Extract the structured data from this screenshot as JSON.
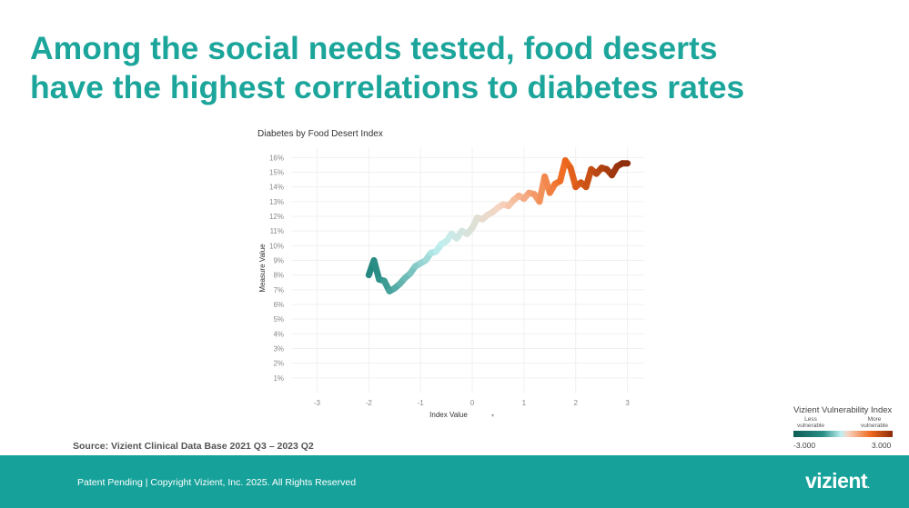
{
  "title": {
    "line1": "Among the social needs tested, food deserts",
    "line2": "have the highest correlations to diabetes rates"
  },
  "source": "Source: Vizient Clinical Data Base 2021 Q3 – 2023 Q2",
  "legend": {
    "title": "Vizient Vulnerability Index",
    "less": "Less vulnerable",
    "more": "More vulnerable",
    "min": "-3.000",
    "max": "3.000"
  },
  "footer": {
    "copyright": "Patent Pending  |  Copyright Vizient, Inc. 2025. All Rights Reserved",
    "logo": "vizient"
  },
  "chart_data": {
    "type": "line",
    "title": "Diabetes by Food Desert Index",
    "xlabel": "Index Value",
    "ylabel": "Measure Value",
    "xlim": [
      -3.5,
      3.5
    ],
    "ylim": [
      0,
      16.7
    ],
    "x_ticks": [
      -3,
      -2,
      -1,
      0,
      1,
      2,
      3
    ],
    "x_tick_labels": [
      "-3",
      "-2",
      "-1",
      "0",
      "1",
      "2",
      "3"
    ],
    "y_ticks": [
      1,
      2,
      3,
      4,
      5,
      6,
      7,
      8,
      9,
      10,
      11,
      12,
      13,
      14,
      15,
      16
    ],
    "y_tick_labels": [
      "1%",
      "2%",
      "3%",
      "4%",
      "5%",
      "6%",
      "7%",
      "8%",
      "9%",
      "10%",
      "11%",
      "12%",
      "13%",
      "14%",
      "15%",
      "16%"
    ],
    "color_scale": {
      "min": -3,
      "max": 3,
      "colors": [
        "#0d5c55",
        "#2a8f87",
        "#bfeff0",
        "#f7d3bf",
        "#f0691e",
        "#8a2b0b"
      ]
    },
    "series": [
      {
        "name": "Diabetes",
        "x": [
          -2.0,
          -1.9,
          -1.8,
          -1.7,
          -1.6,
          -1.5,
          -1.4,
          -1.3,
          -1.2,
          -1.1,
          -1.0,
          -0.9,
          -0.8,
          -0.7,
          -0.6,
          -0.5,
          -0.4,
          -0.3,
          -0.2,
          -0.1,
          0.0,
          0.1,
          0.2,
          0.3,
          0.4,
          0.5,
          0.6,
          0.7,
          0.8,
          0.9,
          1.0,
          1.1,
          1.2,
          1.3,
          1.4,
          1.5,
          1.6,
          1.7,
          1.8,
          1.9,
          2.0,
          2.1,
          2.2,
          2.3,
          2.4,
          2.5,
          2.6,
          2.7,
          2.8,
          2.9,
          3.0
        ],
        "values": [
          8.0,
          9.0,
          7.7,
          7.6,
          6.9,
          7.1,
          7.4,
          7.8,
          8.1,
          8.6,
          8.8,
          9.0,
          9.5,
          9.6,
          10.1,
          10.3,
          10.8,
          10.5,
          11.0,
          10.8,
          11.2,
          11.9,
          11.8,
          12.1,
          12.3,
          12.6,
          12.8,
          12.7,
          13.1,
          13.4,
          13.2,
          13.6,
          13.5,
          13.0,
          14.7,
          13.6,
          14.2,
          14.4,
          15.8,
          15.3,
          14.0,
          14.3,
          14.0,
          15.2,
          14.9,
          15.3,
          15.2,
          14.8,
          15.4,
          15.6,
          15.6
        ]
      }
    ]
  }
}
